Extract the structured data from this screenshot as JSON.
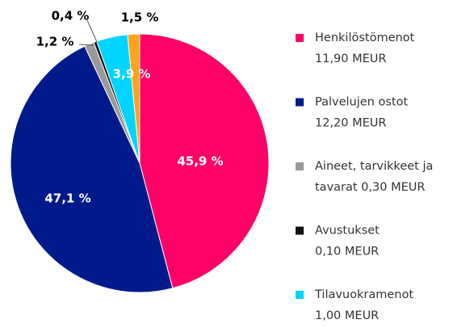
{
  "chart_data": {
    "type": "pie",
    "categories": [
      "Henkilöstömenot",
      "Palvelujen ostot",
      "Aineet, tarvikkeet ja",
      "Avustukset",
      "Tilavuokramenot",
      null
    ],
    "legend_details": [
      "11,90 MEUR",
      "12,20 MEUR",
      "tavarat 0,30 MEUR",
      "0,10 MEUR",
      "1,00 MEUR",
      null
    ],
    "values": [
      45.9,
      47.1,
      1.2,
      0.4,
      3.9,
      1.5
    ],
    "value_labels": [
      "45,9 %",
      "47,1 %",
      "1,2 %",
      "0,4 %",
      "3,9 %",
      "1,5 %"
    ],
    "colors": [
      "#ff0066",
      "#001a8c",
      "#999999",
      "#111111",
      "#00d4ff",
      "#ffa31a"
    ]
  }
}
